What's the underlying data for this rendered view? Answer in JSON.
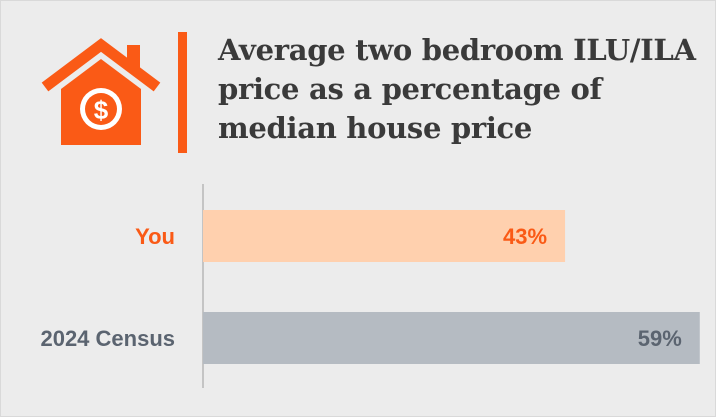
{
  "title": "Average two bedroom ILU/ILA price as a percentage of median house price",
  "icon": "house-dollar-icon",
  "colors": {
    "accent": "#fa5a16",
    "you_bar": "#ffd0ae",
    "census_bar": "#b5bbc2",
    "census_text": "#5b6470",
    "axis": "#c4c4c4"
  },
  "chart_data": {
    "type": "bar",
    "orientation": "horizontal",
    "title": "Average two bedroom ILU/ILA price as a percentage of median house price",
    "categories": [
      "You",
      "2024 Census"
    ],
    "values": [
      43,
      59
    ],
    "value_labels": [
      "43%",
      "59%"
    ],
    "unit": "%",
    "xlim": [
      0,
      100
    ],
    "grid": false,
    "legend": "none"
  }
}
